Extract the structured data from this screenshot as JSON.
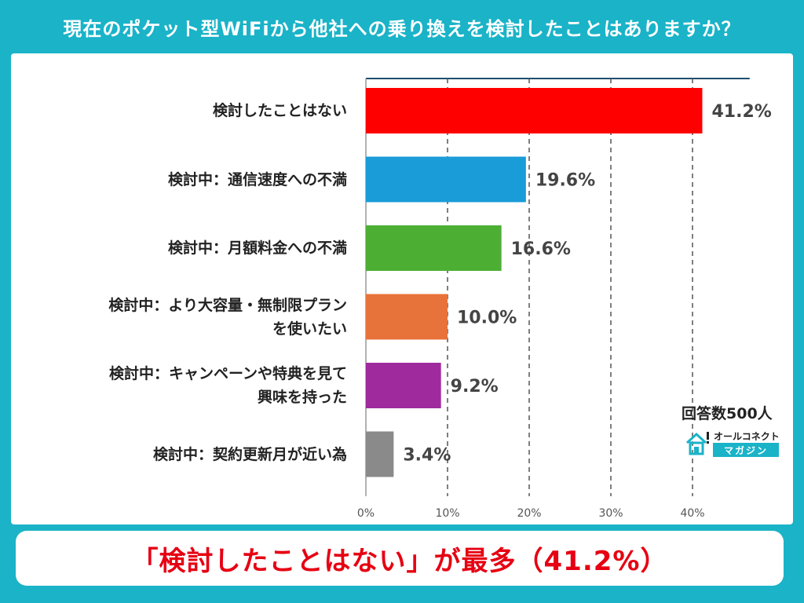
{
  "page": {
    "title": "現在のポケット型WiFiから他社への乗り換えを検討したことはありますか？",
    "footer": "「検討したことはない」が最多（41.2%）",
    "respondents": "回答数500人",
    "logo_main": "オールコネクト",
    "logo_sub": "マガジン",
    "colors": {
      "background": "#1ab3c8",
      "footer_text": "#e60012"
    }
  },
  "chart_data": {
    "type": "bar",
    "orientation": "horizontal",
    "categories": [
      [
        "検討したことはない"
      ],
      [
        "検討中：通信速度への不満"
      ],
      [
        "検討中：月額料金への不満"
      ],
      [
        "検討中：より大容量・無制限プラン",
        "を使いたい"
      ],
      [
        "検討中：キャンペーンや特典を見て",
        "興味を持った"
      ],
      [
        "検討中：契約更新月が近い為"
      ]
    ],
    "values": [
      41.2,
      19.6,
      16.6,
      10.0,
      9.2,
      3.4
    ],
    "value_labels": [
      "41.2%",
      "19.6%",
      "16.6%",
      "10.0%",
      "9.2%",
      "3.4%"
    ],
    "colors": [
      "#ff0000",
      "#1a9cd8",
      "#4caf34",
      "#e8733a",
      "#9e2a9e",
      "#8a8a8a"
    ],
    "xlim": [
      0,
      45
    ],
    "xticks": [
      0,
      10,
      20,
      30,
      40
    ],
    "xtick_labels": [
      "0%",
      "10%",
      "20%",
      "30%",
      "40%"
    ],
    "grid": true
  }
}
